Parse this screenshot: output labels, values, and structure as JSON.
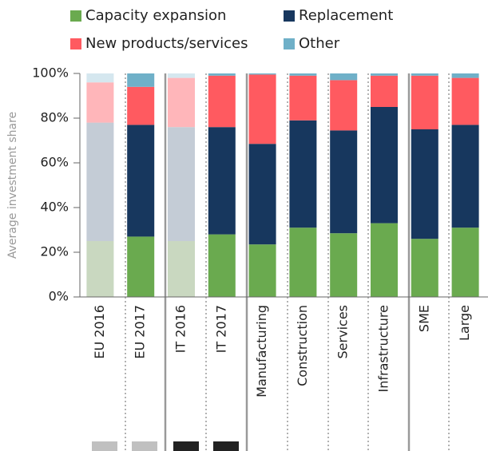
{
  "chart_data": {
    "type": "stacked_bar",
    "y_label": "Average investment share",
    "categories": [
      "EU 2016",
      "EU 2017",
      "IT 2016",
      "IT 2017",
      "Manufacturing",
      "Construction",
      "Services",
      "Infrastructure",
      "SME",
      "Large"
    ],
    "faded": [
      true,
      false,
      true,
      false,
      false,
      false,
      false,
      false,
      false,
      false
    ],
    "series": [
      {
        "name": "Capacity expansion",
        "color": "#6aaa4f",
        "faded_color": "#c9d8c0",
        "values": [
          25,
          27,
          25,
          28,
          23.5,
          31,
          28.5,
          33,
          26,
          31
        ]
      },
      {
        "name": "Replacement",
        "color": "#17375e",
        "faded_color": "#c4ccd6",
        "values": [
          53,
          50,
          51,
          48,
          45,
          48,
          46,
          52,
          49,
          46
        ]
      },
      {
        "name": "New products/services",
        "color": "#ff5a60",
        "faded_color": "#ffb6ba",
        "values": [
          18,
          17,
          22,
          23,
          31,
          20,
          22.5,
          14,
          24,
          21
        ]
      },
      {
        "name": "Other",
        "color": "#6fb0c8",
        "faded_color": "#d5e7ef",
        "values": [
          4,
          6,
          2,
          1,
          0.5,
          1,
          3,
          1,
          1,
          2
        ]
      }
    ],
    "ylim": [
      0,
      100
    ],
    "yticks": [
      {
        "value": 0,
        "label": "0%"
      },
      {
        "value": 20,
        "label": "20%"
      },
      {
        "value": 40,
        "label": "40%"
      },
      {
        "value": 60,
        "label": "60%"
      },
      {
        "value": 80,
        "label": "80%"
      },
      {
        "value": 100,
        "label": "100%"
      }
    ]
  }
}
